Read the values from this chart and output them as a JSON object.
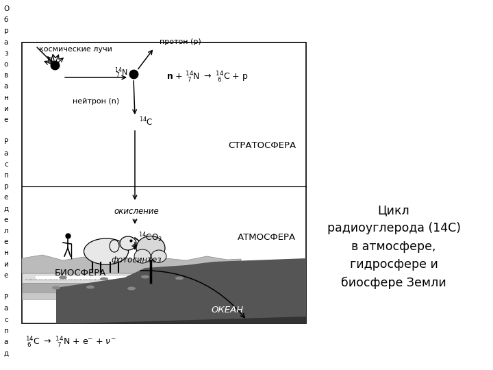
{
  "title": "Цикл\nрадиоуглерода (14С)\nв атмосфере,\nгидросфере и\nбиосфере Земли",
  "cosmic_rays_label": "космические лучи",
  "proton_label": "протон (p)",
  "neutron_label": "нейтрон (n)",
  "stratosphere_label": "СТРАТОСФЕРА",
  "atmosphere_label": "АТМОСФЕРА",
  "biosphere_label": "БИОСФЕРА",
  "ocean_label": "ОКЕАН",
  "oxidation_label": "окисление",
  "photosynthesis_label": "фотосинтез",
  "bg_color": "#ffffff"
}
